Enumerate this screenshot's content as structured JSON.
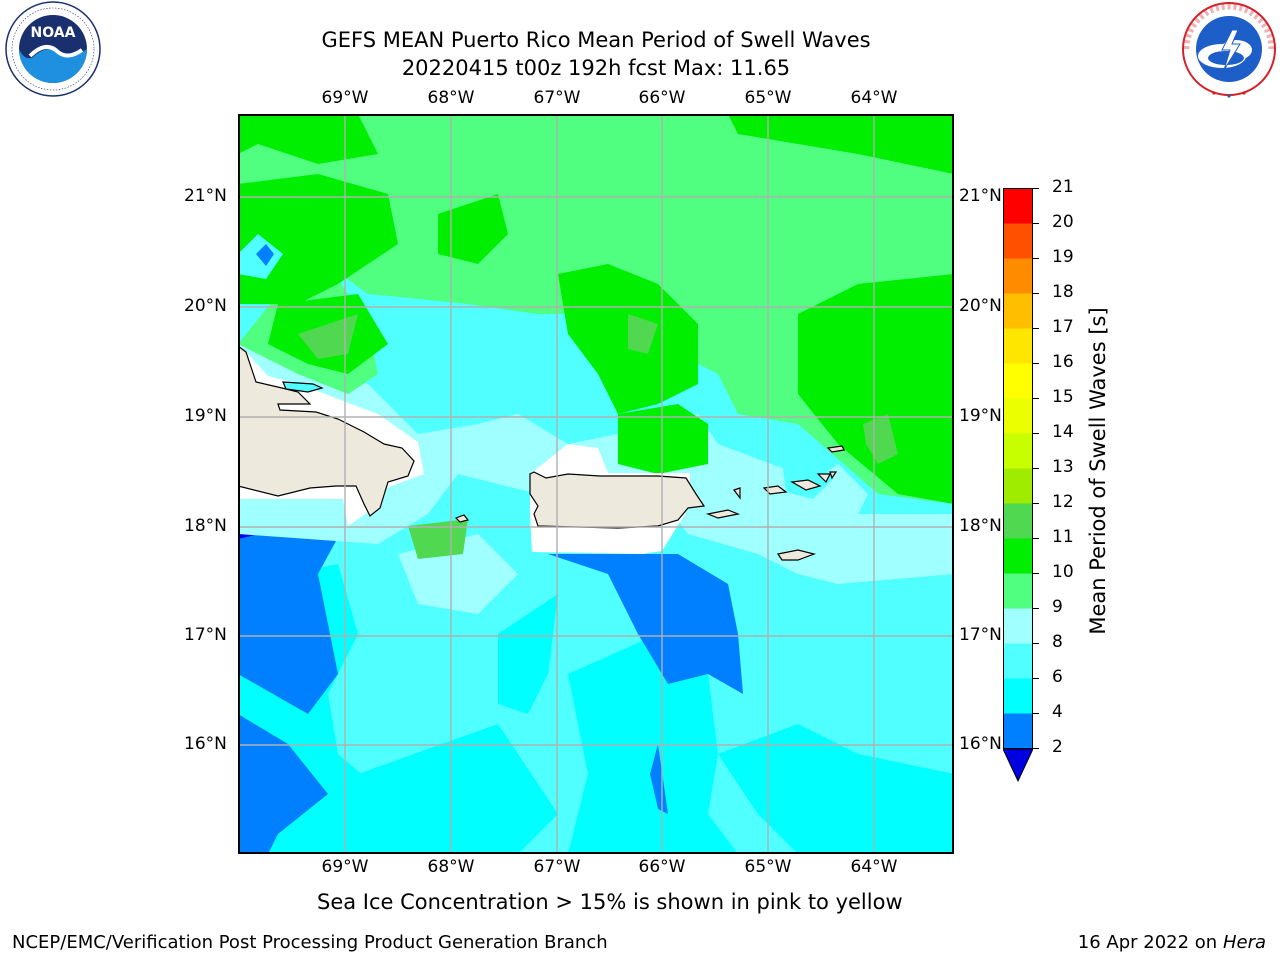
{
  "title": {
    "line1": "GEFS MEAN Puerto Rico Mean Period of Swell Waves",
    "line2": "20220415 t00z 192h fcst   Max: 11.65"
  },
  "logos": {
    "left": {
      "name": "NOAA",
      "ring_text": "NATIONAL OCEANIC AND ATMOSPHERIC ADMINISTRATION · U.S. DEPARTMENT OF COMMERCE"
    },
    "right": {
      "name": "NATIONAL WEATHER SERVICE"
    }
  },
  "map": {
    "lon_labels": [
      "69°W",
      "68°W",
      "67°W",
      "66°W",
      "65°W",
      "64°W"
    ],
    "lat_labels": [
      "21°N",
      "20°N",
      "19°N",
      "18°N",
      "17°N",
      "16°N"
    ],
    "lon_values": [
      -69,
      -68,
      -67,
      -66,
      -65,
      -64
    ],
    "lat_values": [
      21,
      20,
      19,
      18,
      17,
      16
    ],
    "lon_range": [
      -70,
      -63.25
    ],
    "lat_range": [
      15,
      21.75
    ],
    "land_color": "#ede9dc",
    "grid_color": "#b0b0b0"
  },
  "colorbar": {
    "title": "Mean Period of Swell Waves [s]",
    "levels": [
      "2",
      "4",
      "6",
      "8",
      "9",
      "10",
      "11",
      "12",
      "13",
      "14",
      "15",
      "16",
      "17",
      "18",
      "19",
      "20",
      "21"
    ],
    "colors": [
      "#0000ff",
      "#0080ff",
      "#00ffff",
      "#50ffff",
      "#a0ffff",
      "#50ff80",
      "#00ee00",
      "#50d850",
      "#a0ec00",
      "#c8ff00",
      "#ecff00",
      "#ffff00",
      "#ffe600",
      "#ffbe00",
      "#ff8c00",
      "#ff5000",
      "#ff0000"
    ],
    "extend_color": "#0000e0"
  },
  "note": "Sea Ice Concentration > 15% is shown in pink to yellow",
  "footer": {
    "left": "NCEP/EMC/Verification Post Processing Product Generation Branch",
    "date": "16 Apr 2022 on ",
    "machine": "Hera"
  }
}
